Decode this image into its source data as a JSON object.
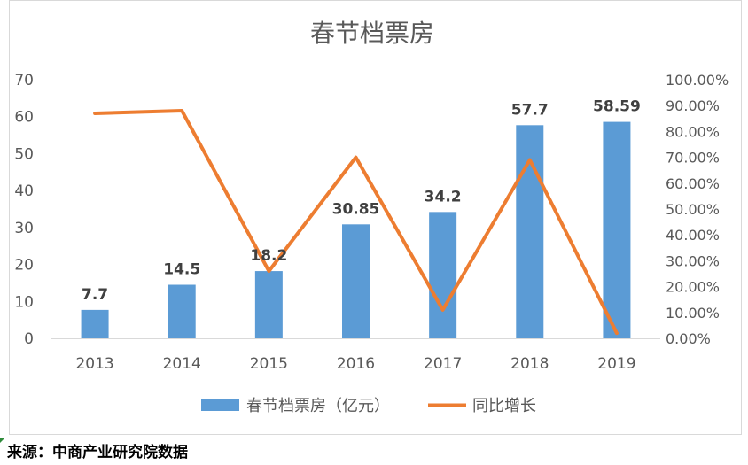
{
  "chart_data": {
    "type": "bar",
    "title": "春节档票房",
    "categories": [
      "2013",
      "2014",
      "2015",
      "2016",
      "2017",
      "2018",
      "2019"
    ],
    "series": [
      {
        "name": "春节档票房（亿元）",
        "type": "bar",
        "axis": "left",
        "color": "#5b9bd5",
        "values": [
          7.7,
          14.5,
          18.2,
          30.85,
          34.2,
          57.7,
          58.59
        ],
        "data_labels": [
          "7.7",
          "14.5",
          "18.2",
          "30.85",
          "34.2",
          "57.7",
          "58.59"
        ]
      },
      {
        "name": "同比增长",
        "type": "line",
        "axis": "right",
        "color": "#ed7d31",
        "values": [
          0.87,
          0.88,
          0.26,
          0.7,
          0.11,
          0.69,
          0.02
        ]
      }
    ],
    "y_left": {
      "min": 0,
      "max": 70,
      "ticks": [
        "0",
        "10",
        "20",
        "30",
        "40",
        "50",
        "60",
        "70"
      ]
    },
    "y_right": {
      "min": 0,
      "max": 1,
      "ticks": [
        "0.00%",
        "10.00%",
        "20.00%",
        "30.00%",
        "40.00%",
        "50.00%",
        "60.00%",
        "70.00%",
        "80.00%",
        "90.00%",
        "100.00%"
      ]
    },
    "grid": false,
    "legend": "bottom"
  },
  "source_text": "来源：中商产业研究院数据"
}
